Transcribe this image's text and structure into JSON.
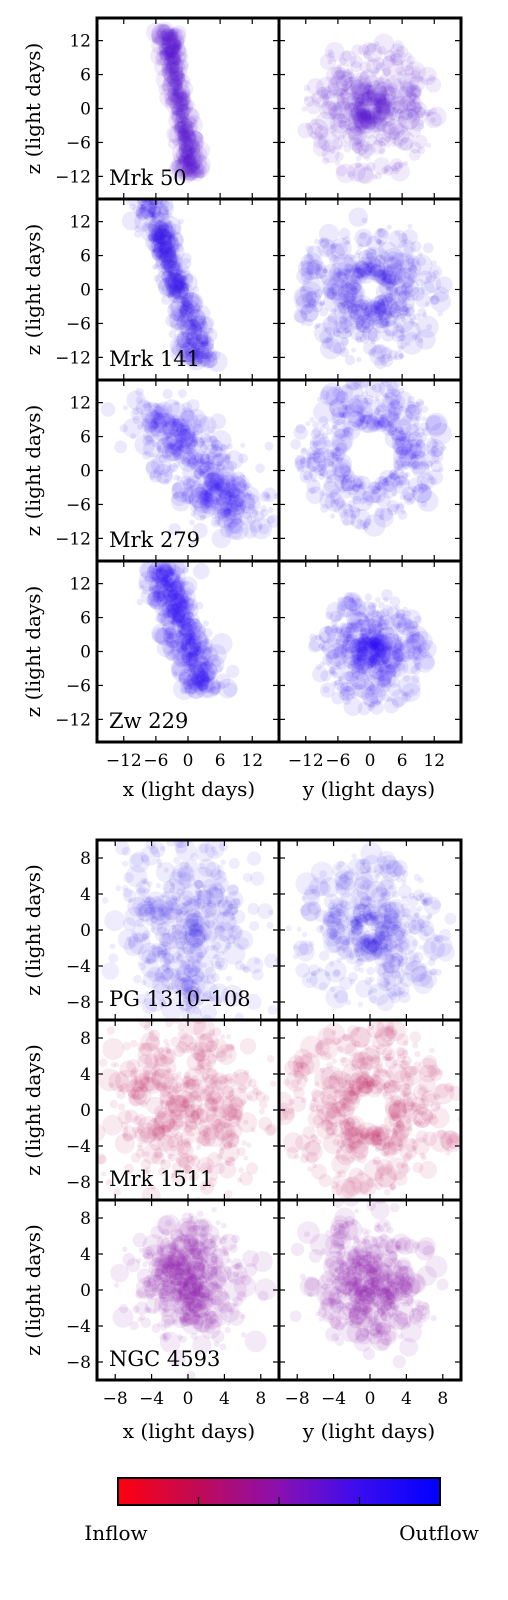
{
  "colorbar": {
    "min_label": "Inflow",
    "max_label": "Outflow",
    "colors": [
      "#ff0010",
      "#c00a55",
      "#8a10b0",
      "#3a0cf0",
      "#0000ff"
    ]
  },
  "chart_data": [
    {
      "group": "top",
      "type": "scatter",
      "xlabel": "x (light days)",
      "ylabel_right_col": "y (light days)",
      "ylabel": "z (light days)",
      "tick_labels": [
        "−12",
        "−6",
        "0",
        "6",
        "12"
      ],
      "tick_values": [
        -12,
        -6,
        0,
        6,
        12
      ],
      "xlim": [
        -17,
        17
      ],
      "ylim": [
        -16,
        16
      ],
      "rows": [
        {
          "object": "Mrk 50",
          "color": "#5a14d2",
          "alpha": 0.09,
          "left": {
            "shape": "tilted_band",
            "center": [
              -1.5,
              1
            ],
            "slope": -5.5,
            "width": 1.4,
            "length": 26
          },
          "right": {
            "shape": "ring_cloud",
            "center": [
              0,
              0
            ],
            "inner": 1.5,
            "outer": 13
          }
        },
        {
          "object": "Mrk 141",
          "color": "#2a10ee",
          "alpha": 0.09,
          "left": {
            "shape": "tilted_band",
            "center": [
              -2.5,
              2
            ],
            "slope": -2.8,
            "width": 2.0,
            "length": 30
          },
          "right": {
            "shape": "ring_cloud",
            "center": [
              0,
              0
            ],
            "inner": 3.0,
            "outer": 14
          }
        },
        {
          "object": "Mrk 279",
          "color": "#2810f0",
          "alpha": 0.09,
          "left": {
            "shape": "wedge",
            "center": [
              -1,
              5
            ],
            "slope": -1.6,
            "width": 5,
            "length": 28
          },
          "right": {
            "shape": "ring_cloud",
            "center": [
              0,
              3
            ],
            "inner": 5.5,
            "outer": 14
          }
        },
        {
          "object": "Zw 229",
          "color": "#2a0ef2",
          "alpha": 0.09,
          "left": {
            "shape": "tilted_band",
            "center": [
              -1,
              4
            ],
            "slope": -2.5,
            "width": 3.0,
            "length": 22
          },
          "right": {
            "shape": "ring_cloud",
            "center": [
              0,
              0
            ],
            "inner": 1.2,
            "outer": 11
          }
        }
      ]
    },
    {
      "group": "bottom",
      "type": "scatter",
      "xlabel": "x (light days)",
      "ylabel_right_col": "y (light days)",
      "ylabel": "z (light days)",
      "tick_labels": [
        "−8",
        "−4",
        "0",
        "4",
        "8"
      ],
      "tick_values": [
        -8,
        -4,
        0,
        4,
        8
      ],
      "xlim": [
        -10,
        10
      ],
      "ylim": [
        -10,
        10
      ],
      "rows": [
        {
          "object": "PG 1310–108",
          "color": "#2c10e8",
          "alpha": 0.08,
          "left": {
            "shape": "blob",
            "center": [
              0,
              0
            ],
            "sx": 3.5,
            "sy": 5.5
          },
          "right": {
            "shape": "ring_cloud",
            "center": [
              0,
              0
            ],
            "inner": 1.2,
            "outer": 9
          }
        },
        {
          "object": "Mrk 1511",
          "color": "#c0185a",
          "alpha": 0.09,
          "left": {
            "shape": "blob",
            "center": [
              -0.5,
              0.5
            ],
            "sx": 4.5,
            "sy": 5.5
          },
          "right": {
            "shape": "ring_cloud",
            "center": [
              0,
              0
            ],
            "inner": 2.5,
            "outer": 10
          }
        },
        {
          "object": "NGC 4593",
          "color": "#8a0ea8",
          "alpha": 0.09,
          "left": {
            "shape": "blob",
            "center": [
              0,
              1
            ],
            "sx": 2.8,
            "sy": 3.2
          },
          "right": {
            "shape": "blob",
            "center": [
              0,
              1
            ],
            "sx": 3.0,
            "sy": 3.2
          }
        }
      ]
    }
  ]
}
